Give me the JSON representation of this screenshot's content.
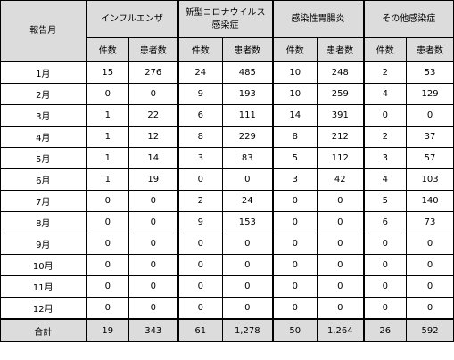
{
  "header": {
    "month_label": "報告月",
    "groups": [
      "インフルエンザ",
      "新型コロナウイルス\n感染症",
      "感染性胃腸炎",
      "その他感染症"
    ],
    "sub_headers": [
      "件数",
      "患者数",
      "件数",
      "患者数",
      "件数",
      "患者数",
      "件数",
      "患者数"
    ]
  },
  "rows": [
    {
      "month": "1月",
      "values": [
        "15",
        "276",
        "24",
        "485",
        "10",
        "248",
        "2",
        "53"
      ]
    },
    {
      "month": "2月",
      "values": [
        "0",
        "0",
        "9",
        "193",
        "10",
        "259",
        "4",
        "129"
      ]
    },
    {
      "month": "3月",
      "values": [
        "1",
        "22",
        "6",
        "111",
        "14",
        "391",
        "0",
        "0"
      ]
    },
    {
      "month": "4月",
      "values": [
        "1",
        "12",
        "8",
        "229",
        "8",
        "212",
        "2",
        "37"
      ]
    },
    {
      "month": "5月",
      "values": [
        "1",
        "14",
        "3",
        "83",
        "5",
        "112",
        "3",
        "57"
      ]
    },
    {
      "month": "6月",
      "values": [
        "1",
        "19",
        "0",
        "0",
        "3",
        "42",
        "4",
        "103"
      ]
    },
    {
      "month": "7月",
      "values": [
        "0",
        "0",
        "2",
        "24",
        "0",
        "0",
        "5",
        "140"
      ]
    },
    {
      "month": "8月",
      "values": [
        "0",
        "0",
        "9",
        "153",
        "0",
        "0",
        "6",
        "73"
      ]
    },
    {
      "month": "9月",
      "values": [
        "0",
        "0",
        "0",
        "0",
        "0",
        "0",
        "0",
        "0"
      ]
    },
    {
      "month": "10月",
      "values": [
        "0",
        "0",
        "0",
        "0",
        "0",
        "0",
        "0",
        "0"
      ]
    },
    {
      "month": "11月",
      "values": [
        "0",
        "0",
        "0",
        "0",
        "0",
        "0",
        "0",
        "0"
      ]
    },
    {
      "month": "12月",
      "values": [
        "0",
        "0",
        "0",
        "0",
        "0",
        "0",
        "0",
        "0"
      ]
    }
  ],
  "total": {
    "label": "合計",
    "values": [
      "19",
      "343",
      "61",
      "1,278",
      "50",
      "1,264",
      "26",
      "592"
    ]
  }
}
